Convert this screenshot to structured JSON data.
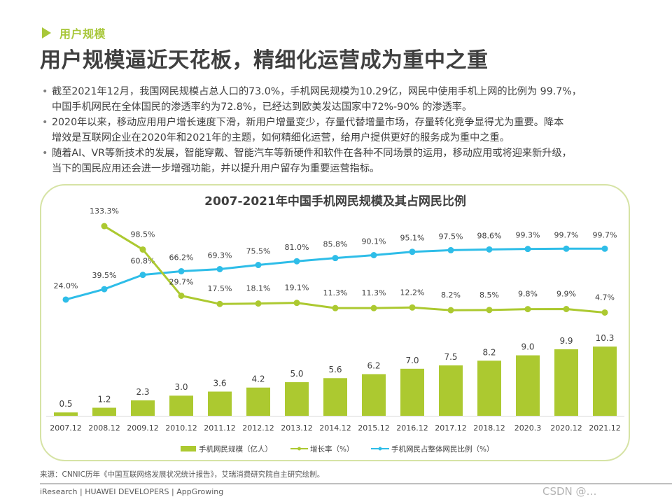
{
  "section_tag": "用户规模",
  "page_title": "用户规模逼近天花板，精细化运营成为重中之重",
  "bullets": [
    {
      "line1": "截至2021年12月，我国网民规模占总人口的73.0%，手机网民规模为10.29亿，网民中使用手机上网的比例为 99.7%，",
      "line2": "中国手机网民在全体国民的渗透率约为72.8%，已经达到欧美发达国家中72%-90% 的渗透率。"
    },
    {
      "line1": "2020年以来，移动应用用户增长速度下滑，新用户增量变少，存量代替增量市场，存量转化竞争显得尤为重要。降本",
      "line2": "增效是互联网企业在2020年和2021年的主题，如何精细化运营，给用户提供更好的服务成为重中之重。"
    },
    {
      "line1": "随着AI、VR等新技术的发展，智能穿戴、智能汽车等新硬件和软件在各种不同场景的运用，移动应用或将迎来新升级，",
      "line2": "当下的国民应用还会进一步增强功能，并以提升用户留存为重要运营指标。"
    }
  ],
  "chart_data": {
    "type": "bar",
    "title": "2007-2021年中国手机网民规模及其占网民比例",
    "xlabel": "",
    "ylabel": "",
    "categories": [
      "2007.12",
      "2008.12",
      "2009.12",
      "2010.12",
      "2011.12",
      "2012.12",
      "2013.12",
      "2014.12",
      "2015.12",
      "2016.12",
      "2017.12",
      "2018.12",
      "2020.3",
      "2020.12",
      "2021.12"
    ],
    "series": [
      {
        "name": "手机网民规模（亿人）",
        "type": "bar",
        "color": "#acc930",
        "values": [
          0.5,
          1.2,
          2.3,
          3.0,
          3.6,
          4.2,
          5.0,
          5.6,
          6.2,
          7.0,
          7.5,
          8.2,
          9.0,
          9.9,
          10.3
        ],
        "labels": [
          "0.5",
          "1.2",
          "2.3",
          "3.0",
          "3.6",
          "4.2",
          "5.0",
          "5.6",
          "6.2",
          "7.0",
          "7.5",
          "8.2",
          "9.0",
          "9.9",
          "10.3"
        ]
      },
      {
        "name": "增长率（%）",
        "type": "line",
        "color": "#acc930",
        "values": [
          null,
          133.3,
          98.5,
          29.7,
          17.5,
          18.1,
          19.1,
          11.3,
          11.3,
          12.2,
          8.2,
          8.5,
          9.8,
          9.9,
          4.7
        ],
        "labels": [
          null,
          "133.3%",
          "98.5%",
          "29.7%",
          "17.5%",
          "18.1%",
          "19.1%",
          "11.3%",
          "11.3%",
          "12.2%",
          "8.2%",
          "8.5%",
          "9.8%",
          "9.9%",
          "4.7%"
        ]
      },
      {
        "name": "手机网民占整体网民比例（%）",
        "type": "line",
        "color": "#2ebde8",
        "values": [
          24.0,
          39.5,
          60.8,
          66.2,
          69.3,
          75.5,
          81.0,
          85.8,
          90.1,
          95.1,
          97.5,
          98.6,
          99.3,
          99.7,
          99.7
        ],
        "labels": [
          "24.0%",
          "39.5%",
          "60.8%",
          "66.2%",
          "69.3%",
          "75.5%",
          "81.0%",
          "85.8%",
          "90.1%",
          "95.1%",
          "97.5%",
          "98.6%",
          "99.3%",
          "99.7%",
          "99.7%"
        ]
      }
    ],
    "bar_ylim": [
      0,
      10.3
    ],
    "line_ylim": [
      0,
      140
    ],
    "grid": false,
    "legend": {
      "position": "bottom",
      "entries": [
        "手机网民规模（亿人）",
        "增长率（%）",
        "手机网民占整体网民比例（%）"
      ]
    }
  },
  "source": "来源：CNNIC历年《中国互联网络发展状况统计报告》，艾瑞消费研究院自主研究绘制。",
  "footer": "iResearch | HUAWEI DEVELOPERS | AppGrowing",
  "watermark": "CSDN @…"
}
